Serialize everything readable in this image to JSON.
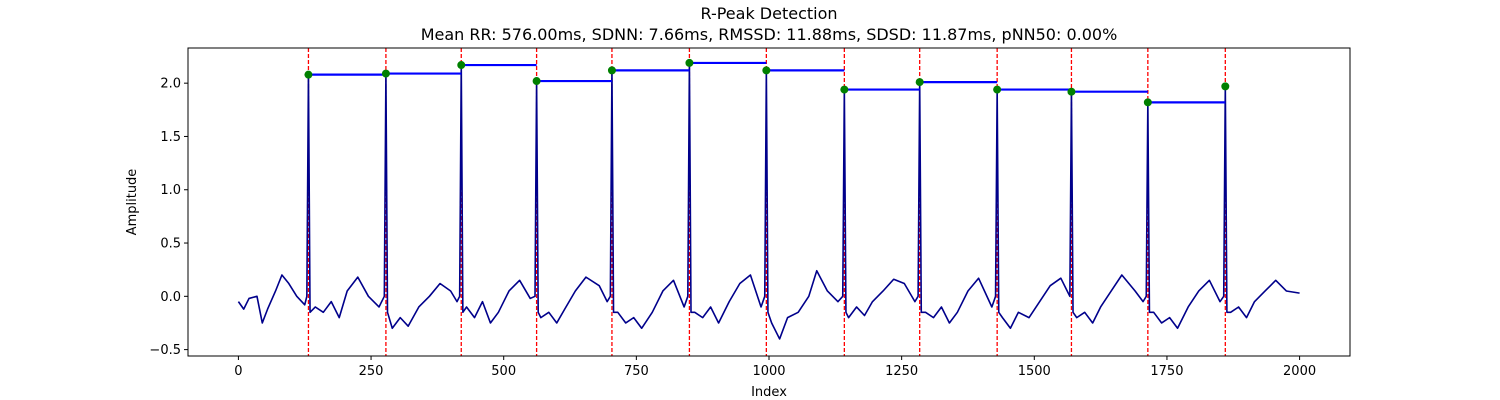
{
  "chart_data": {
    "type": "line",
    "title": "R-Peak Detection",
    "subtitle": "Mean RR: 576.00ms, SDNN: 7.66ms, RMSSD: 11.88ms, SDSD: 11.87ms, pNN50: 0.00%",
    "xlabel": "Index",
    "ylabel": "Amplitude",
    "xlim": [
      -95,
      2095
    ],
    "ylim": [
      -0.56,
      2.33
    ],
    "xticks": [
      0,
      250,
      500,
      750,
      1000,
      1250,
      1500,
      1750,
      2000
    ],
    "xtick_labels": [
      "0",
      "250",
      "500",
      "750",
      "1000",
      "1250",
      "1500",
      "1750",
      "2000"
    ],
    "yticks": [
      -0.5,
      0.0,
      0.5,
      1.0,
      1.5,
      2.0
    ],
    "ytick_labels": [
      "−0.5",
      "0.0",
      "0.5",
      "1.0",
      "1.5",
      "2.0"
    ],
    "grid": false,
    "signal_color": "#00008b",
    "peak_line_color": "#ff0000",
    "rr_segment_color": "#0000ff",
    "peak_marker_color": "#008000",
    "signal_baseline": [
      [
        0,
        -0.05
      ],
      [
        10,
        -0.12
      ],
      [
        20,
        -0.02
      ],
      [
        35,
        0.0
      ],
      [
        45,
        -0.25
      ],
      [
        55,
        -0.12
      ],
      [
        70,
        0.05
      ],
      [
        82,
        0.2
      ],
      [
        95,
        0.12
      ],
      [
        110,
        0.0
      ],
      [
        125,
        -0.08
      ],
      [
        145,
        -0.1
      ],
      [
        160,
        -0.15
      ],
      [
        175,
        -0.05
      ],
      [
        190,
        -0.2
      ],
      [
        205,
        0.05
      ],
      [
        225,
        0.18
      ],
      [
        245,
        0.0
      ],
      [
        265,
        -0.1
      ],
      [
        290,
        -0.3
      ],
      [
        305,
        -0.2
      ],
      [
        320,
        -0.28
      ],
      [
        340,
        -0.1
      ],
      [
        360,
        0.0
      ],
      [
        380,
        0.12
      ],
      [
        400,
        0.05
      ],
      [
        412,
        -0.05
      ],
      [
        430,
        -0.1
      ],
      [
        445,
        -0.2
      ],
      [
        460,
        -0.05
      ],
      [
        475,
        -0.25
      ],
      [
        490,
        -0.15
      ],
      [
        510,
        0.05
      ],
      [
        530,
        0.15
      ],
      [
        550,
        -0.02
      ],
      [
        570,
        -0.2
      ],
      [
        585,
        -0.15
      ],
      [
        600,
        -0.25
      ],
      [
        615,
        -0.12
      ],
      [
        635,
        0.05
      ],
      [
        655,
        0.18
      ],
      [
        680,
        0.1
      ],
      [
        695,
        -0.05
      ],
      [
        715,
        -0.15
      ],
      [
        730,
        -0.25
      ],
      [
        745,
        -0.2
      ],
      [
        760,
        -0.3
      ],
      [
        780,
        -0.15
      ],
      [
        800,
        0.05
      ],
      [
        820,
        0.15
      ],
      [
        840,
        -0.1
      ],
      [
        860,
        -0.15
      ],
      [
        875,
        -0.2
      ],
      [
        890,
        -0.1
      ],
      [
        905,
        -0.25
      ],
      [
        925,
        -0.05
      ],
      [
        945,
        0.12
      ],
      [
        965,
        0.2
      ],
      [
        985,
        -0.1
      ],
      [
        1005,
        -0.25
      ],
      [
        1020,
        -0.4
      ],
      [
        1035,
        -0.2
      ],
      [
        1055,
        -0.15
      ],
      [
        1075,
        0.0
      ],
      [
        1090,
        0.24
      ],
      [
        1110,
        0.05
      ],
      [
        1130,
        -0.05
      ],
      [
        1150,
        -0.2
      ],
      [
        1165,
        -0.1
      ],
      [
        1180,
        -0.18
      ],
      [
        1195,
        -0.05
      ],
      [
        1215,
        0.05
      ],
      [
        1235,
        0.16
      ],
      [
        1255,
        0.12
      ],
      [
        1275,
        -0.05
      ],
      [
        1295,
        -0.15
      ],
      [
        1310,
        -0.2
      ],
      [
        1325,
        -0.1
      ],
      [
        1340,
        -0.25
      ],
      [
        1355,
        -0.15
      ],
      [
        1375,
        0.05
      ],
      [
        1395,
        0.17
      ],
      [
        1420,
        -0.1
      ],
      [
        1440,
        -0.2
      ],
      [
        1455,
        -0.3
      ],
      [
        1470,
        -0.15
      ],
      [
        1490,
        -0.2
      ],
      [
        1510,
        -0.05
      ],
      [
        1530,
        0.1
      ],
      [
        1550,
        0.17
      ],
      [
        1562,
        0.05
      ],
      [
        1580,
        -0.2
      ],
      [
        1595,
        -0.15
      ],
      [
        1610,
        -0.25
      ],
      [
        1625,
        -0.1
      ],
      [
        1645,
        0.05
      ],
      [
        1665,
        0.2
      ],
      [
        1690,
        0.05
      ],
      [
        1705,
        -0.05
      ],
      [
        1725,
        -0.15
      ],
      [
        1740,
        -0.25
      ],
      [
        1755,
        -0.2
      ],
      [
        1770,
        -0.3
      ],
      [
        1790,
        -0.1
      ],
      [
        1810,
        0.05
      ],
      [
        1830,
        0.15
      ],
      [
        1850,
        -0.05
      ],
      [
        1870,
        -0.15
      ],
      [
        1885,
        -0.1
      ],
      [
        1900,
        -0.2
      ],
      [
        1915,
        -0.05
      ],
      [
        1935,
        0.05
      ],
      [
        1955,
        0.15
      ],
      [
        1975,
        0.05
      ],
      [
        2000,
        0.03
      ]
    ],
    "r_peaks": [
      {
        "x": 132,
        "y": 2.08
      },
      {
        "x": 278,
        "y": 2.09
      },
      {
        "x": 420,
        "y": 2.17
      },
      {
        "x": 562,
        "y": 2.02
      },
      {
        "x": 704,
        "y": 2.12
      },
      {
        "x": 850,
        "y": 2.19
      },
      {
        "x": 995,
        "y": 2.12
      },
      {
        "x": 1142,
        "y": 1.94
      },
      {
        "x": 1284,
        "y": 2.01
      },
      {
        "x": 1430,
        "y": 1.94
      },
      {
        "x": 1570,
        "y": 1.92
      },
      {
        "x": 1714,
        "y": 1.82
      },
      {
        "x": 1860,
        "y": 1.97
      }
    ]
  }
}
